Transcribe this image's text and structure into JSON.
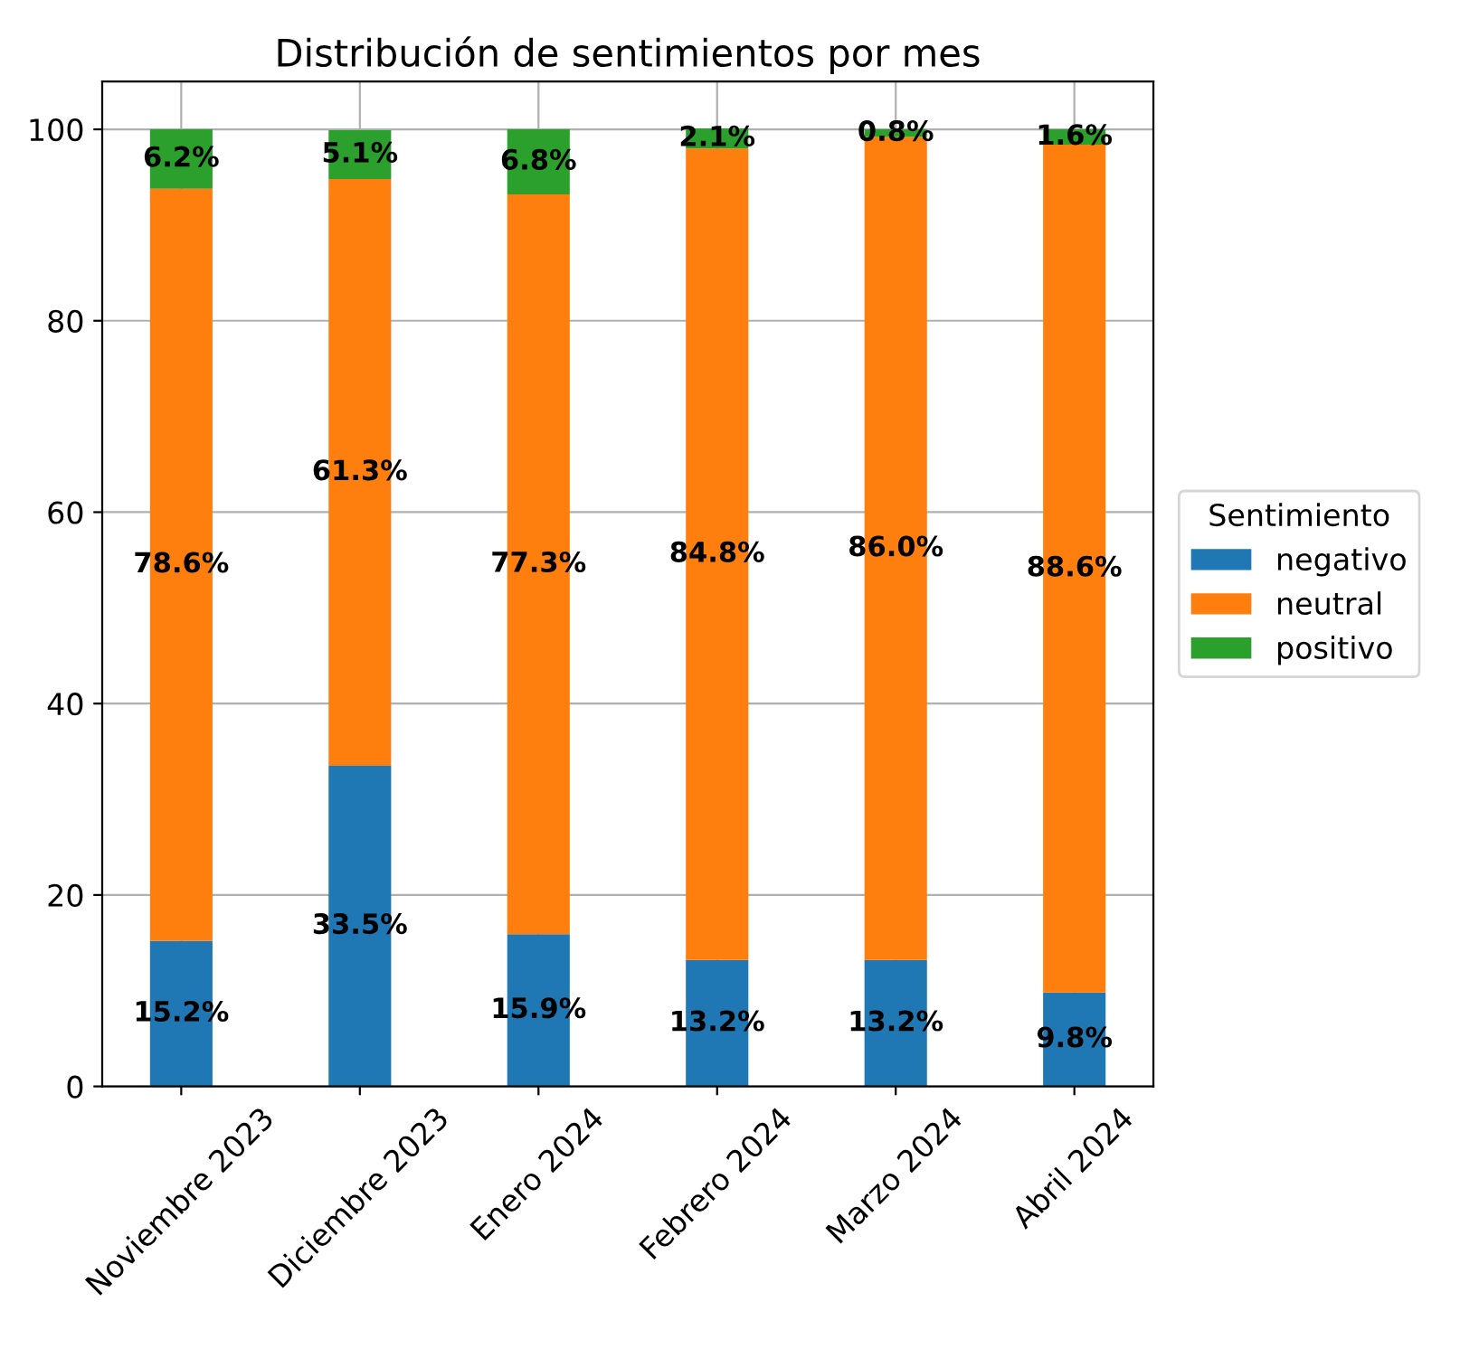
{
  "chart_data": {
    "type": "bar",
    "stacked": true,
    "title": "Distribución de sentimientos por mes",
    "legend_title": "Sentimiento",
    "legend": "right",
    "grid": true,
    "categories": [
      "Noviembre 2023",
      "Diciembre 2023",
      "Enero 2024",
      "Febrero 2024",
      "Marzo 2024",
      "Abril 2024"
    ],
    "ylim": [
      0,
      105
    ],
    "yticks": [
      0,
      20,
      40,
      60,
      80,
      100
    ],
    "series": [
      {
        "name": "negativo",
        "color": "#1f77b4",
        "values": [
          15.2,
          33.5,
          15.9,
          13.2,
          13.2,
          9.8
        ],
        "value_labels": [
          "15.2%",
          "33.5%",
          "15.9%",
          "13.2%",
          "13.2%",
          "9.8%"
        ]
      },
      {
        "name": "neutral",
        "color": "#ff7f0e",
        "values": [
          78.6,
          61.3,
          77.3,
          84.8,
          86.0,
          88.6
        ],
        "value_labels": [
          "78.6%",
          "61.3%",
          "77.3%",
          "84.8%",
          "86.0%",
          "88.6%"
        ]
      },
      {
        "name": "positivo",
        "color": "#2ca02c",
        "values": [
          6.2,
          5.1,
          6.8,
          2.1,
          0.8,
          1.6
        ],
        "value_labels": [
          "6.2%",
          "5.1%",
          "6.8%",
          "2.1%",
          "0.8%",
          "1.6%"
        ]
      }
    ]
  }
}
